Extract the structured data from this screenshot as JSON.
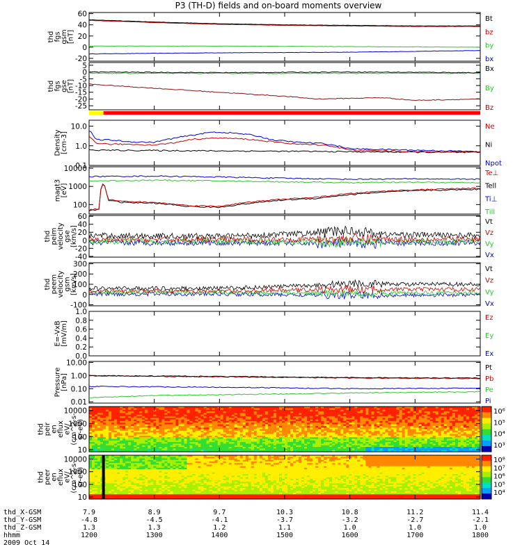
{
  "title": "P3 (TH-D) fields and on-board moments overview",
  "colors": {
    "black": "#000000",
    "red": "#cc0000",
    "green": "#22cc22",
    "blue": "#0000cc",
    "darkred": "#8b1010",
    "yellow": "#ffff00",
    "barred": "#ff0000"
  },
  "chart_data": [
    {
      "id": "bfield-gsm",
      "type": "line",
      "ylabel": [
        "thd",
        "fgs",
        "gsm",
        "[nT]"
      ],
      "yticks": [
        60,
        40,
        20,
        0,
        -20
      ],
      "ylim": [
        -25,
        62
      ],
      "log": false,
      "series": [
        {
          "name": "Bt",
          "color": "#000000",
          "points": [
            [
              1200,
              49
            ],
            [
              1300,
              45
            ],
            [
              1400,
              42
            ],
            [
              1500,
              40
            ],
            [
              1600,
              39
            ],
            [
              1700,
              38
            ],
            [
              1800,
              38
            ]
          ]
        },
        {
          "name": "bz",
          "color": "#cc0000",
          "points": [
            [
              1200,
              48
            ],
            [
              1300,
              44
            ],
            [
              1400,
              41
            ],
            [
              1500,
              39
            ],
            [
              1600,
              38
            ],
            [
              1700,
              37
            ],
            [
              1800,
              37
            ]
          ]
        },
        {
          "name": "by",
          "color": "#22cc22",
          "points": [
            [
              1200,
              2
            ],
            [
              1400,
              2
            ],
            [
              1600,
              1
            ],
            [
              1800,
              0
            ]
          ]
        },
        {
          "name": "bx",
          "color": "#0000cc",
          "points": [
            [
              1200,
              -12
            ],
            [
              1400,
              -10
            ],
            [
              1600,
              -9
            ],
            [
              1800,
              -6
            ]
          ]
        }
      ]
    },
    {
      "id": "bfield-gse",
      "type": "line",
      "ylabel": [
        "thd",
        "fgs",
        "gse",
        "[nT]"
      ],
      "yticks": [
        5,
        0,
        -5,
        -10,
        -15,
        -20,
        -25
      ],
      "ylim": [
        -28,
        7
      ],
      "log": false,
      "series": [
        {
          "name": "Bx",
          "color": "#000000",
          "points": [
            [
              1200,
              0
            ],
            [
              1400,
              -0.5
            ],
            [
              1600,
              0
            ],
            [
              1800,
              -0.5
            ]
          ]
        },
        {
          "name": "By",
          "color": "#22cc22",
          "points": [
            [
              1200,
              -1
            ],
            [
              1400,
              -1
            ],
            [
              1600,
              -1
            ],
            [
              1800,
              -1
            ]
          ]
        },
        {
          "name": "Bz",
          "color": "#8b1010",
          "points": [
            [
              1200,
              -9
            ],
            [
              1300,
              -12
            ],
            [
              1400,
              -15
            ],
            [
              1500,
              -18
            ],
            [
              1550,
              -20
            ],
            [
              1650,
              -19
            ],
            [
              1700,
              -21
            ],
            [
              1800,
              -20
            ]
          ]
        }
      ]
    },
    {
      "id": "density",
      "type": "line",
      "ylabel": [
        "Density",
        "[cm-3]"
      ],
      "yticks": [
        10.0,
        1.0,
        0.1
      ],
      "ytick_labels": [
        "10.0",
        "1.0",
        "0.1"
      ],
      "ylim": [
        0.1,
        20
      ],
      "log": true,
      "series": [
        {
          "name": "Ne",
          "color": "#cc0000",
          "points": [
            [
              1200,
              3
            ],
            [
              1210,
              1.4
            ],
            [
              1230,
              1.2
            ],
            [
              1260,
              1.2
            ],
            [
              1300,
              1.1
            ],
            [
              1330,
              1.4
            ],
            [
              1360,
              2.2
            ],
            [
              1400,
              2.5
            ],
            [
              1440,
              2.2
            ],
            [
              1480,
              1.6
            ],
            [
              1520,
              1.2
            ],
            [
              1560,
              1.1
            ],
            [
              1600,
              0.6
            ],
            [
              1700,
              0.5
            ],
            [
              1800,
              0.5
            ]
          ]
        },
        {
          "name": "Ni",
          "color": "#000000",
          "points": [
            [
              1200,
              0.6
            ],
            [
              1400,
              0.55
            ],
            [
              1600,
              0.5
            ],
            [
              1800,
              0.45
            ]
          ]
        },
        {
          "name": "Npot",
          "color": "#0000cc",
          "points": [
            [
              1200,
              6
            ],
            [
              1210,
              2
            ],
            [
              1230,
              2
            ],
            [
              1260,
              1.6
            ],
            [
              1300,
              1.5
            ],
            [
              1330,
              2.4
            ],
            [
              1360,
              3.5
            ],
            [
              1390,
              5
            ],
            [
              1420,
              4.5
            ],
            [
              1450,
              3.5
            ],
            [
              1480,
              2
            ],
            [
              1520,
              1.5
            ],
            [
              1560,
              1.3
            ],
            [
              1600,
              0.7
            ],
            [
              1700,
              0.6
            ],
            [
              1800,
              0.5
            ]
          ]
        }
      ]
    },
    {
      "id": "temperature",
      "type": "line",
      "ylabel": [
        "magt3",
        "[eV]"
      ],
      "yticks": [
        10000,
        1000,
        100
      ],
      "ytick_labels": [
        "10000",
        "1000",
        "100"
      ],
      "ylim": [
        30,
        12000
      ],
      "log": true,
      "series": [
        {
          "name": "Te⊥",
          "color": "#cc0000",
          "points": [
            [
              1200,
              50
            ],
            [
              1215,
              60
            ],
            [
              1222,
              1600
            ],
            [
              1228,
              200
            ],
            [
              1250,
              150
            ],
            [
              1300,
              130
            ],
            [
              1350,
              90
            ],
            [
              1400,
              80
            ],
            [
              1450,
              140
            ],
            [
              1500,
              200
            ],
            [
              1550,
              250
            ],
            [
              1600,
              400
            ],
            [
              1650,
              550
            ],
            [
              1700,
              650
            ],
            [
              1800,
              800
            ]
          ]
        },
        {
          "name": "Tell",
          "color": "#000000",
          "points": [
            [
              1200,
              45
            ],
            [
              1215,
              55
            ],
            [
              1222,
              1500
            ],
            [
              1228,
              180
            ],
            [
              1250,
              130
            ],
            [
              1300,
              120
            ],
            [
              1350,
              80
            ],
            [
              1400,
              70
            ],
            [
              1450,
              120
            ],
            [
              1500,
              180
            ],
            [
              1550,
              220
            ],
            [
              1600,
              350
            ],
            [
              1650,
              480
            ],
            [
              1700,
              580
            ],
            [
              1800,
              700
            ]
          ]
        },
        {
          "name": "Ti⊥",
          "color": "#0000cc",
          "points": [
            [
              1200,
              3500
            ],
            [
              1300,
              3700
            ],
            [
              1400,
              3300
            ],
            [
              1500,
              2800
            ],
            [
              1600,
              2500
            ],
            [
              1700,
              2600
            ],
            [
              1800,
              2500
            ]
          ]
        },
        {
          "name": "Till",
          "color": "#22cc22",
          "points": [
            [
              1200,
              2000
            ],
            [
              1300,
              2200
            ],
            [
              1400,
              2000
            ],
            [
              1500,
              1800
            ],
            [
              1600,
              1600
            ],
            [
              1700,
              1700
            ],
            [
              1800,
              1600
            ]
          ]
        }
      ]
    },
    {
      "id": "velocity-gse",
      "type": "line",
      "ylabel": [
        "thd",
        "peim",
        "velocity",
        "gse",
        "[km/s]"
      ],
      "yticks": [
        60,
        40,
        20,
        0,
        -20,
        -40
      ],
      "ylim": [
        -42,
        62
      ],
      "log": false,
      "series": [
        {
          "name": "Vt",
          "color": "#000000",
          "points": [
            [
              1200,
              12
            ],
            [
              1400,
              10
            ],
            [
              1550,
              18
            ],
            [
              1600,
              25
            ],
            [
              1650,
              15
            ],
            [
              1800,
              12
            ]
          ]
        },
        {
          "name": "Vz",
          "color": "#cc0000",
          "points": [
            [
              1200,
              2
            ],
            [
              1400,
              2
            ],
            [
              1600,
              4
            ],
            [
              1800,
              2
            ]
          ]
        },
        {
          "name": "Vy",
          "color": "#22cc22",
          "points": [
            [
              1200,
              -3
            ],
            [
              1400,
              -3
            ],
            [
              1600,
              -5
            ],
            [
              1800,
              -3
            ]
          ]
        },
        {
          "name": "Vx",
          "color": "#0000cc",
          "points": [
            [
              1200,
              -6
            ],
            [
              1400,
              -6
            ],
            [
              1600,
              -8
            ],
            [
              1800,
              -6
            ]
          ]
        }
      ]
    },
    {
      "id": "velocity-gsm",
      "type": "line",
      "ylabel": [
        "thd",
        "peem",
        "velocity",
        "gsm",
        "[km/s]"
      ],
      "yticks": [
        300,
        200,
        100,
        0,
        -100
      ],
      "ylim": [
        -110,
        310
      ],
      "log": false,
      "series": [
        {
          "name": "Vt",
          "color": "#000000",
          "points": [
            [
              1200,
              60
            ],
            [
              1400,
              60
            ],
            [
              1550,
              90
            ],
            [
              1600,
              110
            ],
            [
              1700,
              100
            ],
            [
              1800,
              100
            ]
          ]
        },
        {
          "name": "Vz",
          "color": "#cc0000",
          "points": [
            [
              1200,
              30
            ],
            [
              1400,
              35
            ],
            [
              1600,
              50
            ],
            [
              1800,
              50
            ]
          ]
        },
        {
          "name": "Vy",
          "color": "#22cc22",
          "points": [
            [
              1200,
              20
            ],
            [
              1400,
              20
            ],
            [
              1600,
              10
            ],
            [
              1800,
              20
            ]
          ]
        },
        {
          "name": "Vx",
          "color": "#0000cc",
          "points": [
            [
              1200,
              5
            ],
            [
              1400,
              5
            ],
            [
              1600,
              -10
            ],
            [
              1800,
              0
            ]
          ]
        }
      ]
    },
    {
      "id": "efield",
      "type": "line",
      "ylabel": [
        "E=-VxB",
        "[mV/m]"
      ],
      "yticks": [
        1.0,
        0.8,
        0.6,
        0.4,
        0.2,
        0.0
      ],
      "ytick_labels": [
        "1.0",
        "0.8",
        "0.6",
        "0.4",
        "0.2",
        "0.0"
      ],
      "ylim": [
        0,
        1
      ],
      "log": false,
      "series": [
        {
          "name": "Ez",
          "color": "#cc0000",
          "points": []
        },
        {
          "name": "Ey",
          "color": "#22cc22",
          "points": []
        },
        {
          "name": "Ex",
          "color": "#0000cc",
          "points": []
        }
      ]
    },
    {
      "id": "pressure",
      "type": "line",
      "ylabel": [
        "Pressure",
        "[nPa]"
      ],
      "yticks": [
        10.0,
        1.0,
        0.1,
        0.01
      ],
      "ytick_labels": [
        "10.00",
        "1.00",
        "0.10",
        "0.01"
      ],
      "ylim": [
        0.008,
        12
      ],
      "log": true,
      "series": [
        {
          "name": "Pt",
          "color": "#000000",
          "points": [
            [
              1200,
              1.0
            ],
            [
              1400,
              0.85
            ],
            [
              1600,
              0.7
            ],
            [
              1800,
              0.65
            ]
          ]
        },
        {
          "name": "Pb",
          "color": "#cc0000",
          "points": [
            [
              1200,
              0.95
            ],
            [
              1400,
              0.8
            ],
            [
              1600,
              0.65
            ],
            [
              1800,
              0.6
            ]
          ]
        },
        {
          "name": "Pe",
          "color": "#22cc22",
          "points": [
            [
              1200,
              0.02
            ],
            [
              1300,
              0.03
            ],
            [
              1500,
              0.04
            ],
            [
              1650,
              0.05
            ],
            [
              1800,
              0.06
            ]
          ]
        },
        {
          "name": "Pi",
          "color": "#0000cc",
          "points": [
            [
              1200,
              0.15
            ],
            [
              1400,
              0.13
            ],
            [
              1600,
              0.1
            ],
            [
              1800,
              0.11
            ]
          ]
        }
      ]
    },
    {
      "id": "ion-spectrogram",
      "type": "heatmap",
      "ylabel": [
        "thd",
        "peir",
        "en",
        "eflux",
        "eV/",
        "(cm^2-s-",
        "sr-eV)"
      ],
      "yticks": [
        10000,
        1000,
        100,
        10
      ],
      "ytick_labels": [
        "10000",
        "1000",
        "100",
        "10"
      ],
      "log": true,
      "colorbar_labels": [
        "10⁶",
        "10⁵",
        "10⁴",
        "10³"
      ]
    },
    {
      "id": "electron-spectrogram",
      "type": "heatmap",
      "ylabel": [
        "thd",
        "peer",
        "en",
        "eflux",
        "eV/",
        "(cm^2-s-",
        "sr-eV)"
      ],
      "yticks": [
        10000,
        1000,
        100,
        10
      ],
      "ytick_labels": [
        "10000",
        "1000",
        "100",
        "10"
      ],
      "log": true,
      "colorbar_labels": [
        "10⁸",
        "10⁷",
        "10⁶",
        "10⁵",
        "10⁴"
      ]
    }
  ],
  "footer": {
    "rows": [
      {
        "label": "thd_X-GSM",
        "values": [
          "7.9",
          "8.9",
          "9.7",
          "10.3",
          "10.8",
          "11.2",
          "11.4"
        ]
      },
      {
        "label": "thd_Y-GSM",
        "values": [
          "-4.8",
          "-4.5",
          "-4.1",
          "-3.7",
          "-3.2",
          "-2.7",
          "-2.1"
        ]
      },
      {
        "label": "thd_Z-GSM",
        "values": [
          "1.3",
          "1.3",
          "1.2",
          "1.1",
          "1.0",
          "1.0",
          "1.0"
        ]
      },
      {
        "label": "hhmm",
        "values": [
          "1200",
          "1300",
          "1400",
          "1500",
          "1600",
          "1700",
          "1800"
        ]
      }
    ],
    "date": "2009 Oct 14"
  }
}
